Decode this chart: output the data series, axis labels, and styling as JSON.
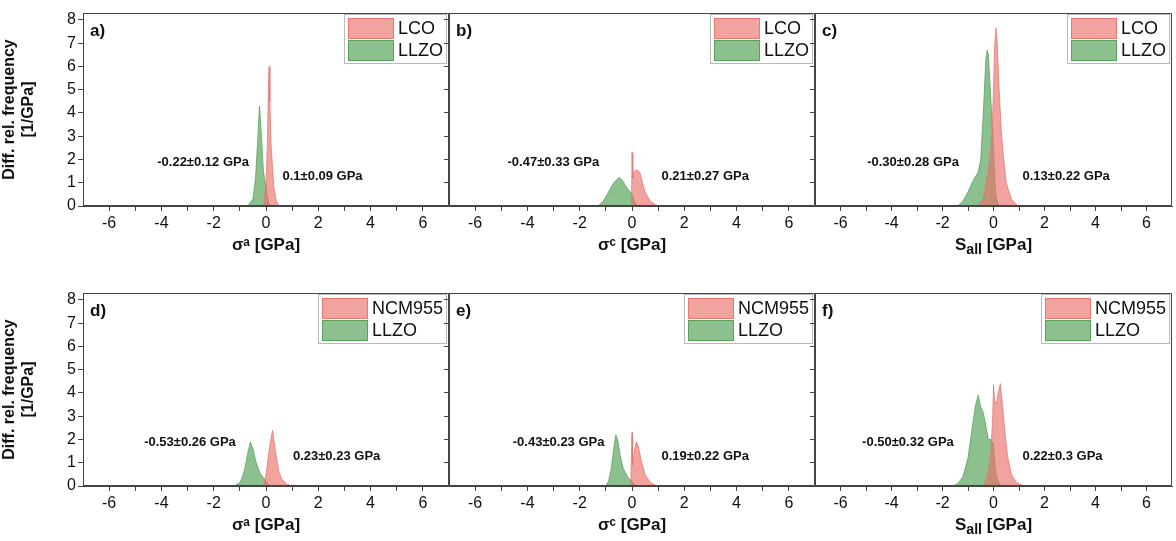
{
  "chart_data": [
    {
      "type": "area",
      "title": "a)",
      "xlabel": "σᵃ [GPa]",
      "ylabel": "Diff. rel. frequency\n[1/GPa]",
      "xlim": [
        -7,
        7
      ],
      "xticks": [
        -6,
        {
          "value": -5,
          "label": null
        },
        -4,
        {
          "value": -3,
          "label": null
        },
        -2,
        {
          "value": -1,
          "label": null
        },
        0,
        {
          "value": 1,
          "label": null
        },
        2,
        {
          "value": 3,
          "label": null
        },
        4,
        {
          "value": 5,
          "label": null
        },
        6
      ],
      "ylim": [
        0,
        8.3
      ],
      "yticks": [
        0,
        1,
        2,
        3,
        4,
        5,
        6,
        7,
        8
      ],
      "legend": "top right",
      "grid": false,
      "annotations": [
        "-0.22±0.12 GPa",
        "0.1±0.09 GPa"
      ],
      "series": [
        {
          "name": "LCO",
          "color": "#e8716c",
          "x": [
            -0.1,
            0,
            0.05,
            0.1,
            0.12,
            0.15,
            0.2,
            0.3,
            0.4,
            0.5
          ],
          "values": [
            0,
            0.9,
            2.5,
            5.5,
            6.0,
            4.5,
            2.5,
            0.8,
            0.2,
            0
          ]
        },
        {
          "name": "LLZO",
          "color": "#4f9e52",
          "x": [
            -0.7,
            -0.5,
            -0.4,
            -0.3,
            -0.25,
            -0.2,
            -0.1,
            0,
            0.1,
            0.2
          ],
          "values": [
            0,
            0.3,
            1.2,
            3.2,
            4.3,
            3.5,
            1.5,
            0.8,
            0.1,
            0
          ]
        }
      ]
    },
    {
      "type": "area",
      "title": "b)",
      "xlabel": "σᶜ [GPa]",
      "xlim": [
        -7,
        7
      ],
      "xticks": [
        -6,
        {
          "value": -5,
          "label": null
        },
        -4,
        {
          "value": -3,
          "label": null
        },
        -2,
        {
          "value": -1,
          "label": null
        },
        0,
        {
          "value": 1,
          "label": null
        },
        2,
        {
          "value": 3,
          "label": null
        },
        4,
        {
          "value": 5,
          "label": null
        },
        6
      ],
      "ylim": [
        0,
        8.3
      ],
      "yticks": [
        0,
        1,
        2,
        3,
        4,
        5,
        6,
        7,
        8
      ],
      "tick_labels": "x",
      "legend": "top right",
      "grid": false,
      "annotations": [
        "-0.47±0.33 GPa",
        "0.21±0.27 GPa"
      ],
      "series": [
        {
          "name": "LCO",
          "color": "#e8716c",
          "x": [
            -0.02,
            0,
            0.03,
            0.1,
            0.2,
            0.3,
            0.4,
            0.5,
            0.7,
            0.9,
            1.0
          ],
          "values": [
            0,
            2.3,
            1.2,
            1.5,
            1.55,
            1.45,
            1.0,
            0.6,
            0.2,
            0.05,
            0
          ]
        },
        {
          "name": "LLZO",
          "color": "#4f9e52",
          "x": [
            -1.3,
            -1.1,
            -0.9,
            -0.7,
            -0.5,
            -0.4,
            -0.2,
            0,
            0.1,
            0.2
          ],
          "values": [
            0,
            0.2,
            0.6,
            1.0,
            1.23,
            1.15,
            0.8,
            0.5,
            0.2,
            0
          ]
        }
      ]
    },
    {
      "type": "area",
      "title": "c)",
      "xlabel": "S$_{all}$ [GPa]",
      "xlim": [
        -7,
        7
      ],
      "xticks": [
        -6,
        {
          "value": -5,
          "label": null
        },
        -4,
        {
          "value": -3,
          "label": null
        },
        -2,
        {
          "value": -1,
          "label": null
        },
        0,
        {
          "value": 1,
          "label": null
        },
        2,
        {
          "value": 3,
          "label": null
        },
        4,
        {
          "value": 5,
          "label": null
        },
        6
      ],
      "ylim": [
        0,
        8.3
      ],
      "yticks": [
        0,
        1,
        2,
        3,
        4,
        5,
        6,
        7,
        8
      ],
      "tick_labels": "x",
      "legend": "top right",
      "grid": false,
      "annotations": [
        "-0.30±0.28 GPa",
        "0.13±0.22 GPa"
      ],
      "series": [
        {
          "name": "LCO",
          "color": "#e8716c",
          "x": [
            -0.6,
            -0.4,
            -0.2,
            -0.1,
            -0.05,
            0,
            0.05,
            0.1,
            0.15,
            0.2,
            0.3,
            0.4,
            0.5,
            0.7,
            0.9,
            1.0
          ],
          "values": [
            0,
            0.3,
            1.5,
            2.5,
            3.4,
            5.0,
            7.0,
            7.65,
            7.0,
            5.5,
            3.3,
            2.0,
            1.0,
            0.3,
            0.05,
            0
          ]
        },
        {
          "name": "LLZO",
          "color": "#4f9e52",
          "x": [
            -1.4,
            -1.2,
            -1.0,
            -0.8,
            -0.6,
            -0.5,
            -0.4,
            -0.3,
            -0.25,
            -0.2,
            -0.15,
            -0.1,
            -0.05,
            0,
            0.05,
            0.1,
            0.2
          ],
          "values": [
            0,
            0.2,
            0.6,
            1.1,
            1.45,
            2.0,
            4.0,
            6.3,
            6.7,
            6.5,
            5.5,
            4.5,
            3.5,
            2.5,
            1.2,
            0.4,
            0
          ]
        }
      ]
    },
    {
      "type": "area",
      "title": "d)",
      "xlabel": "σᵃ [GPa]",
      "ylabel": "Diff. rel. frequency\n[1/GPa]",
      "xlim": [
        -7,
        7
      ],
      "xticks": [
        -6,
        {
          "value": -5,
          "label": null
        },
        -4,
        {
          "value": -3,
          "label": null
        },
        -2,
        {
          "value": -1,
          "label": null
        },
        0,
        {
          "value": 1,
          "label": null
        },
        2,
        {
          "value": 3,
          "label": null
        },
        4,
        {
          "value": 5,
          "label": null
        },
        6
      ],
      "ylim": [
        0,
        8.3
      ],
      "yticks": [
        0,
        1,
        2,
        3,
        4,
        5,
        6,
        7,
        8
      ],
      "legend": "top right",
      "grid": false,
      "annotations": [
        "-0.53±0.26 GPa",
        "0.23±0.23 GPa"
      ],
      "series": [
        {
          "name": "NCM955",
          "color": "#e8716c",
          "x": [
            -0.1,
            0,
            0.05,
            0.1,
            0.2,
            0.25,
            0.3,
            0.4,
            0.5,
            0.6,
            0.8,
            1.0
          ],
          "values": [
            0,
            0.5,
            0.9,
            1.4,
            2.1,
            2.4,
            2.0,
            1.2,
            0.6,
            0.3,
            0.08,
            0
          ]
        },
        {
          "name": "LLZO",
          "color": "#4f9e52",
          "x": [
            -1.2,
            -1.0,
            -0.9,
            -0.8,
            -0.7,
            -0.6,
            -0.5,
            -0.4,
            -0.3,
            -0.2,
            -0.1,
            0,
            0.1,
            0.2
          ],
          "values": [
            0,
            0.15,
            0.4,
            0.8,
            1.4,
            1.9,
            1.6,
            1.1,
            0.75,
            0.5,
            0.35,
            0.2,
            0.05,
            0
          ]
        }
      ]
    },
    {
      "type": "area",
      "title": "e)",
      "xlabel": "σᶜ [GPa]",
      "xlim": [
        -7,
        7
      ],
      "xticks": [
        -6,
        {
          "value": -5,
          "label": null
        },
        -4,
        {
          "value": -3,
          "label": null
        },
        -2,
        {
          "value": -1,
          "label": null
        },
        0,
        {
          "value": 1,
          "label": null
        },
        2,
        {
          "value": 3,
          "label": null
        },
        4,
        {
          "value": 5,
          "label": null
        },
        6
      ],
      "ylim": [
        0,
        8.3
      ],
      "yticks": [
        0,
        1,
        2,
        3,
        4,
        5,
        6,
        7,
        8
      ],
      "tick_labels": "x",
      "legend": "top right",
      "grid": false,
      "annotations": [
        "-0.43±0.23 GPa",
        "0.19±0.22 GPa"
      ],
      "series": [
        {
          "name": "NCM955",
          "color": "#e8716c",
          "x": [
            -0.05,
            0,
            0.02,
            0.1,
            0.17,
            0.25,
            0.35,
            0.5,
            0.7,
            0.9,
            1.0
          ],
          "values": [
            0,
            2.3,
            0.9,
            1.6,
            1.9,
            1.7,
            1.1,
            0.5,
            0.15,
            0.03,
            0
          ]
        },
        {
          "name": "LLZO",
          "color": "#4f9e52",
          "x": [
            -1.0,
            -0.9,
            -0.8,
            -0.7,
            -0.62,
            -0.55,
            -0.45,
            -0.35,
            -0.2,
            -0.1,
            0,
            0.1,
            0.2
          ],
          "values": [
            0,
            0.2,
            0.7,
            1.6,
            2.2,
            2.0,
            1.3,
            0.8,
            0.45,
            0.3,
            0.2,
            0.05,
            0
          ]
        }
      ]
    },
    {
      "type": "area",
      "title": "f)",
      "xlabel": "S$_{all}$ [GPa]",
      "xlim": [
        -7,
        7
      ],
      "xticks": [
        -6,
        {
          "value": -5,
          "label": null
        },
        -4,
        {
          "value": -3,
          "label": null
        },
        -2,
        {
          "value": -1,
          "label": null
        },
        0,
        {
          "value": 1,
          "label": null
        },
        2,
        {
          "value": 3,
          "label": null
        },
        4,
        {
          "value": 5,
          "label": null
        },
        6
      ],
      "ylim": [
        0,
        8.3
      ],
      "yticks": [
        0,
        1,
        2,
        3,
        4,
        5,
        6,
        7,
        8
      ],
      "tick_labels": "x",
      "legend": "top right",
      "grid": false,
      "annotations": [
        "-0.50±0.32 GPa",
        "0.22±0.3 GPa"
      ],
      "series": [
        {
          "name": "NCM955",
          "color": "#e8716c",
          "x": [
            -0.4,
            -0.3,
            -0.2,
            -0.1,
            -0.03,
            0,
            0.05,
            0.12,
            0.2,
            0.27,
            0.35,
            0.45,
            0.55,
            0.7,
            0.9,
            1.2
          ],
          "values": [
            0,
            0.2,
            0.6,
            1.5,
            3.0,
            4.35,
            3.6,
            3.6,
            4.1,
            4.4,
            3.5,
            2.3,
            1.3,
            0.5,
            0.15,
            0
          ]
        },
        {
          "name": "LLZO",
          "color": "#4f9e52",
          "x": [
            -1.6,
            -1.4,
            -1.2,
            -1.0,
            -0.9,
            -0.8,
            -0.7,
            -0.6,
            -0.5,
            -0.4,
            -0.3,
            -0.2,
            -0.1,
            0,
            0.05,
            0.1,
            0.2,
            0.3
          ],
          "values": [
            0,
            0.1,
            0.4,
            1.2,
            2.0,
            2.8,
            3.5,
            3.9,
            3.4,
            3.15,
            2.6,
            2.0,
            2.0,
            1.8,
            1.0,
            0.5,
            0.15,
            0
          ]
        }
      ]
    }
  ]
}
